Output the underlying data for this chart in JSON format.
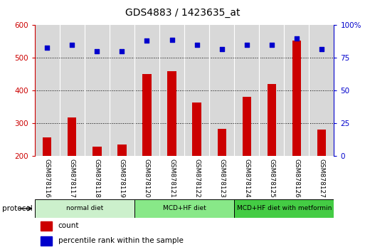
{
  "title": "GDS4883 / 1423635_at",
  "samples": [
    "GSM878116",
    "GSM878117",
    "GSM878118",
    "GSM878119",
    "GSM878120",
    "GSM878121",
    "GSM878122",
    "GSM878123",
    "GSM878124",
    "GSM878125",
    "GSM878126",
    "GSM878127"
  ],
  "counts": [
    258,
    318,
    230,
    235,
    450,
    460,
    365,
    283,
    382,
    420,
    553,
    282
  ],
  "percentile_ranks": [
    83,
    85,
    80,
    80,
    88,
    89,
    85,
    82,
    85,
    85,
    90,
    82
  ],
  "groups": [
    {
      "label": "normal diet",
      "start": 0,
      "end": 4,
      "color": "#ccf0cc"
    },
    {
      "label": "MCD+HF diet",
      "start": 4,
      "end": 8,
      "color": "#88e888"
    },
    {
      "label": "MCD+HF diet with metformin",
      "start": 8,
      "end": 12,
      "color": "#44cc44"
    }
  ],
  "bar_color": "#cc0000",
  "dot_color": "#0000cc",
  "ylim_left": [
    200,
    600
  ],
  "ylim_right": [
    0,
    100
  ],
  "yticks_left": [
    200,
    300,
    400,
    500,
    600
  ],
  "yticks_right": [
    0,
    25,
    50,
    75,
    100
  ],
  "plot_bg_color": "#d8d8d8",
  "title_fontsize": 10,
  "legend_count_label": "count",
  "legend_pct_label": "percentile rank within the sample"
}
